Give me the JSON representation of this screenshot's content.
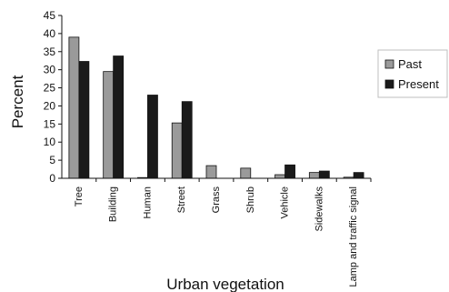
{
  "chart_data": {
    "type": "bar",
    "title": "",
    "xlabel": "Urban vegetation",
    "ylabel": "Percent",
    "ylim": [
      0,
      45
    ],
    "yticks": [
      0,
      5,
      10,
      15,
      20,
      25,
      30,
      35,
      40,
      45
    ],
    "grid": false,
    "legend_position": "right",
    "categories": [
      "Tree",
      "Building",
      "Human",
      "Street",
      "Grass",
      "Shrub",
      "Vehicle",
      "Sidewalks",
      "Lamp and traffic signal"
    ],
    "series": [
      {
        "name": "Past",
        "color": "#9a9a9a",
        "values": [
          39,
          29.5,
          0.2,
          15.3,
          3.5,
          2.8,
          1,
          1.6,
          0.3
        ]
      },
      {
        "name": "Present",
        "color": "#1a1a1a",
        "values": [
          32.3,
          33.8,
          23,
          21.2,
          0,
          0,
          3.7,
          2,
          1.6
        ]
      }
    ]
  }
}
